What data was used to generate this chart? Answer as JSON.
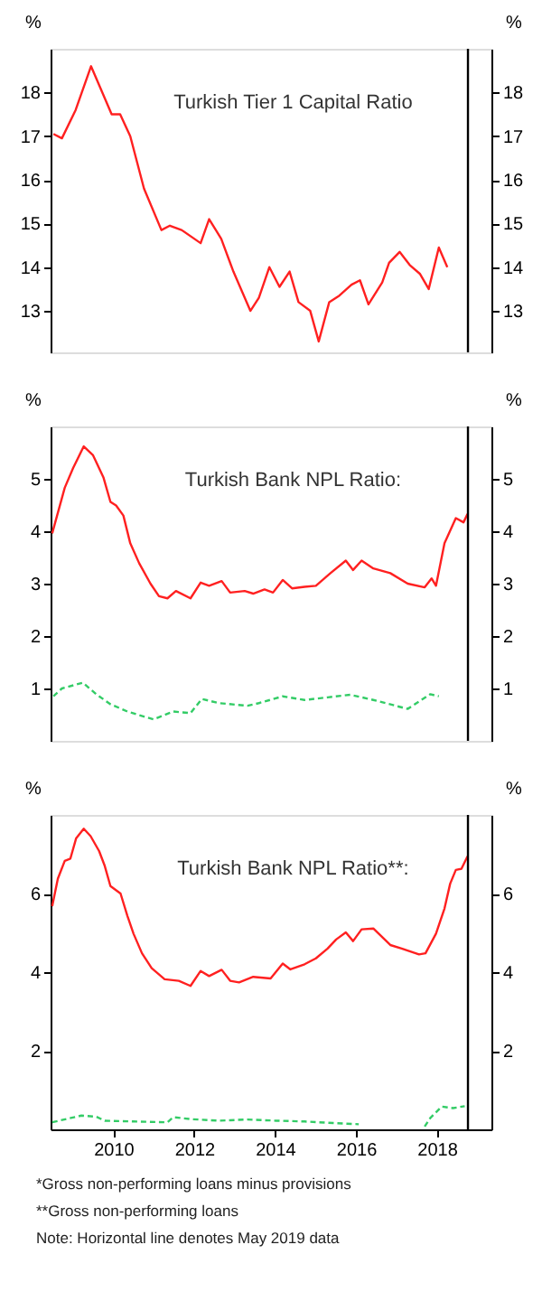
{
  "chart_data": [
    {
      "type": "line",
      "title": "Turkish Tier 1 Capital Ratio",
      "ylabel": "%",
      "y2label": "%",
      "xlim": [
        2008.45,
        2019.35
      ],
      "ylim": [
        12.05,
        19
      ],
      "yticks": [
        13,
        14,
        15,
        16,
        17,
        18
      ],
      "y2lim": [
        12.05,
        19
      ],
      "y2ticks": [
        13,
        14,
        15,
        16,
        17,
        18
      ],
      "tick_labels": "y",
      "ref_lines": [
        {
          "axis": "x",
          "value": 2018.77,
          "color": "#000000"
        }
      ],
      "series": [
        {
          "color": "#ff2020",
          "line_style": "solid",
          "x": [
            2008.52,
            2008.73,
            2009.07,
            2009.45,
            2009.96,
            2010.17,
            2010.42,
            2010.76,
            2011.19,
            2011.4,
            2011.69,
            2012.16,
            2012.37,
            2012.67,
            2012.97,
            2013.39,
            2013.6,
            2013.86,
            2014.11,
            2014.36,
            2014.58,
            2014.87,
            2015.08,
            2015.34,
            2015.59,
            2015.89,
            2016.1,
            2016.31,
            2016.65,
            2016.82,
            2017.08,
            2017.33,
            2017.58,
            2017.8,
            2018.05,
            2018.26
          ],
          "values": [
            17.05,
            16.95,
            17.6,
            18.6,
            17.5,
            17.5,
            17.0,
            15.8,
            14.85,
            14.95,
            14.85,
            14.55,
            15.1,
            14.65,
            13.9,
            13.0,
            13.3,
            14.0,
            13.55,
            13.9,
            13.2,
            13.0,
            12.3,
            13.2,
            13.35,
            13.6,
            13.7,
            13.15,
            13.65,
            14.1,
            14.35,
            14.05,
            13.85,
            13.5,
            14.45,
            14.0
          ]
        }
      ]
    },
    {
      "type": "line",
      "title": "Turkish Bank NPL Ratio:",
      "ylabel": "%",
      "y2label": "%",
      "xlim": [
        2008.45,
        2019.35
      ],
      "ylim": [
        0,
        6
      ],
      "yticks": [
        1,
        2,
        3,
        4,
        5
      ],
      "y2lim": [
        0,
        6
      ],
      "y2ticks": [
        1,
        2,
        3,
        4,
        5
      ],
      "tick_labels": "y",
      "ref_lines": [
        {
          "axis": "x",
          "value": 2018.77,
          "color": "#000000"
        }
      ],
      "series": [
        {
          "color": "#ff2020",
          "line_style": "solid",
          "x": [
            2008.49,
            2008.8,
            2009.01,
            2009.27,
            2009.5,
            2009.76,
            2009.93,
            2010.07,
            2010.25,
            2010.42,
            2010.64,
            2010.92,
            2011.13,
            2011.34,
            2011.55,
            2011.91,
            2012.16,
            2012.37,
            2012.68,
            2012.89,
            2013.25,
            2013.46,
            2013.74,
            2013.95,
            2014.19,
            2014.42,
            2014.73,
            2015.01,
            2015.37,
            2015.75,
            2015.93,
            2016.14,
            2016.43,
            2016.85,
            2017.28,
            2017.7,
            2017.87,
            2017.98,
            2018.19,
            2018.47,
            2018.66,
            2018.76
          ],
          "values": [
            3.96,
            4.83,
            5.21,
            5.62,
            5.45,
            5.02,
            4.56,
            4.49,
            4.3,
            3.77,
            3.39,
            3.0,
            2.76,
            2.72,
            2.86,
            2.72,
            3.02,
            2.96,
            3.05,
            2.83,
            2.86,
            2.81,
            2.89,
            2.83,
            3.07,
            2.91,
            2.94,
            2.96,
            3.2,
            3.44,
            3.26,
            3.44,
            3.29,
            3.2,
            3.0,
            2.93,
            3.1,
            2.96,
            3.77,
            4.25,
            4.17,
            4.33
          ]
        },
        {
          "color": "#33cc66",
          "line_style": "dashed",
          "x": [
            2008.52,
            2008.73,
            2009.25,
            2009.58,
            2009.93,
            2010.35,
            2010.99,
            2011.48,
            2011.91,
            2012.19,
            2012.61,
            2013.32,
            2013.6,
            2014.19,
            2014.73,
            2015.3,
            2015.86,
            2016.43,
            2017.28,
            2017.84,
            2018.05
          ],
          "values": [
            0.85,
            1.0,
            1.11,
            0.89,
            0.7,
            0.56,
            0.41,
            0.56,
            0.53,
            0.8,
            0.72,
            0.67,
            0.72,
            0.85,
            0.78,
            0.83,
            0.88,
            0.78,
            0.61,
            0.89,
            0.85
          ]
        }
      ]
    },
    {
      "type": "line",
      "title": "Turkish Bank NPL Ratio**:",
      "ylabel": "%",
      "y2label": "%",
      "xlim": [
        2008.45,
        2019.35
      ],
      "xticks": [
        2010,
        2012,
        2014,
        2016,
        2018
      ],
      "ylim": [
        0,
        8
      ],
      "yticks": [
        2,
        4,
        6
      ],
      "y2lim": [
        0,
        8
      ],
      "y2ticks": [
        2,
        4,
        6
      ],
      "ref_lines": [
        {
          "axis": "x",
          "value": 2018.77,
          "color": "#000000"
        }
      ],
      "annotations": [
        "*Gross non-performing loans minus provisions",
        "**Gross non-performing loans",
        "Note: Horizontal line denotes May 2019 data"
      ],
      "series": [
        {
          "color": "#ff2020",
          "line_style": "solid",
          "x": [
            2008.49,
            2008.63,
            2008.8,
            2008.94,
            2009.08,
            2009.27,
            2009.44,
            2009.65,
            2009.79,
            2009.93,
            2010.18,
            2010.35,
            2010.5,
            2010.71,
            2010.95,
            2011.27,
            2011.62,
            2011.91,
            2012.16,
            2012.37,
            2012.68,
            2012.89,
            2013.11,
            2013.46,
            2013.89,
            2014.19,
            2014.38,
            2014.73,
            2015.01,
            2015.3,
            2015.51,
            2015.75,
            2015.93,
            2016.14,
            2016.43,
            2016.85,
            2017.13,
            2017.56,
            2017.72,
            2017.98,
            2018.19,
            2018.33,
            2018.47,
            2018.61,
            2018.76
          ],
          "values": [
            5.68,
            6.38,
            6.83,
            6.89,
            7.4,
            7.65,
            7.46,
            7.08,
            6.7,
            6.19,
            6.0,
            5.43,
            4.98,
            4.48,
            4.1,
            3.82,
            3.78,
            3.65,
            4.03,
            3.9,
            4.06,
            3.78,
            3.74,
            3.88,
            3.84,
            4.22,
            4.07,
            4.2,
            4.35,
            4.6,
            4.83,
            5.01,
            4.79,
            5.09,
            5.11,
            4.69,
            4.6,
            4.45,
            4.48,
            4.98,
            5.62,
            6.25,
            6.6,
            6.63,
            6.95
          ]
        },
        {
          "color": "#33cc66",
          "line_style": "dashed",
          "x": [
            2008.49,
            2009.21,
            2009.58,
            2009.79,
            2010.5,
            2011.34,
            2011.48,
            2011.91,
            2012.61,
            2013.32,
            2014.03,
            2014.73,
            2015.44,
            2016.07,
            2017.0,
            2017.7,
            2017.84,
            2018.12,
            2018.4,
            2018.69
          ],
          "values": [
            0.18,
            0.35,
            0.32,
            0.22,
            0.2,
            0.18,
            0.31,
            0.26,
            0.22,
            0.25,
            0.22,
            0.2,
            0.16,
            0.13,
            null,
            0.07,
            0.29,
            0.58,
            0.54,
            0.59
          ]
        }
      ]
    }
  ]
}
